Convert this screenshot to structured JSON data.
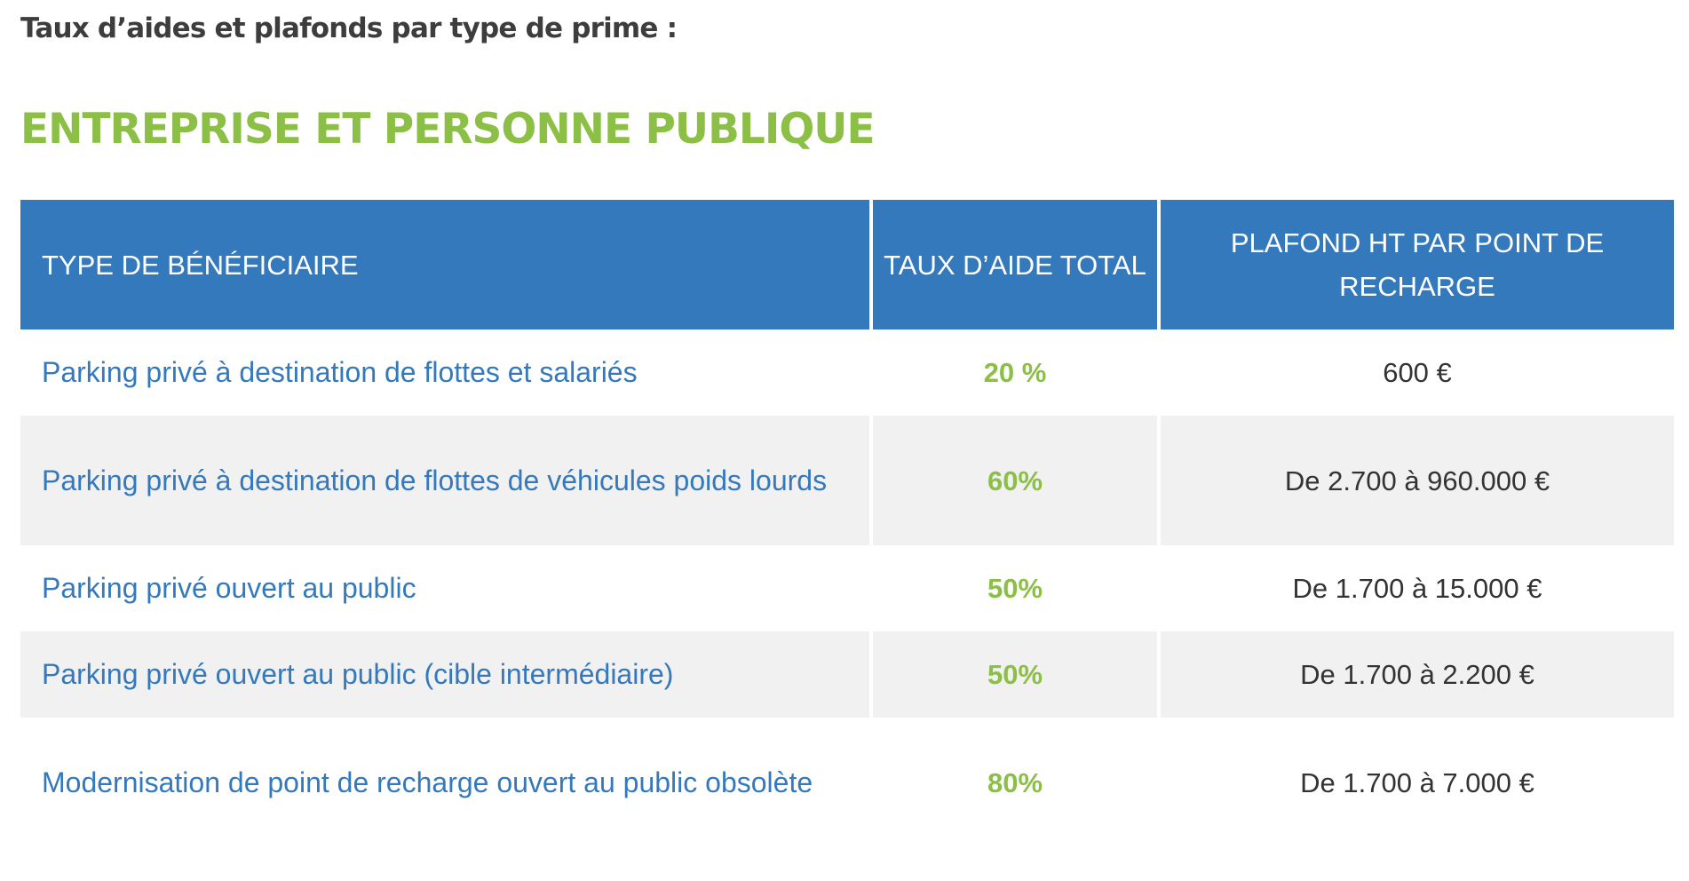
{
  "intro_text": "Taux d’aides et plafonds par type de prime :",
  "section_title": "ENTREPRISE ET PERSONNE PUBLIQUE",
  "table": {
    "headers": {
      "beneficiary": "TYPE DE BÉNÉFICIAIRE",
      "rate": "TAUX D’AIDE TOTAL",
      "cap": "PLAFOND HT PAR POINT DE RECHARGE"
    },
    "rows": [
      {
        "beneficiary": "Parking privé à destination de flottes et salariés",
        "rate": "20 %",
        "cap": "600 €"
      },
      {
        "beneficiary": "Parking privé à destination de flottes de véhicules poids lourds",
        "rate": "60%",
        "cap": "De 2.700 à 960.000 €"
      },
      {
        "beneficiary": "Parking privé ouvert au public",
        "rate": "50%",
        "cap": "De 1.700 à 15.000 €"
      },
      {
        "beneficiary": "Parking privé ouvert au public (cible intermédiaire)",
        "rate": "50%",
        "cap": "De 1.700 à 2.200 €"
      },
      {
        "beneficiary": "Modernisation de point de recharge ouvert au public obsolète",
        "rate": "80%",
        "cap": "De 1.700 à 7.000 €"
      }
    ]
  },
  "colors": {
    "header_bg": "#3579bd",
    "accent_green": "#8cbf45",
    "label_blue": "#3579bd",
    "alt_row_bg": "#f1f1f1"
  }
}
